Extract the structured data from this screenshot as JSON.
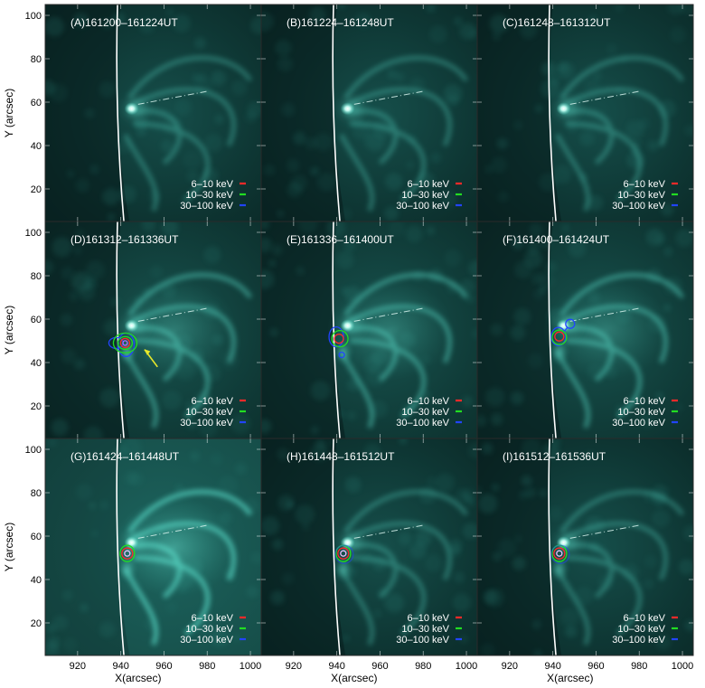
{
  "figure": {
    "axes": {
      "x_label": "X(arcsec)",
      "y_label": "Y (arcsec)",
      "x_ticks": [
        "920",
        "940",
        "960",
        "980",
        "1000"
      ],
      "y_ticks": [
        "20",
        "40",
        "60",
        "80",
        "100"
      ]
    },
    "legend": {
      "entries": [
        {
          "label": "6–10 keV",
          "color": "#ff2a2a"
        },
        {
          "label": "10–30 keV",
          "color": "#22dd22"
        },
        {
          "label": "30–100 keV",
          "color": "#2244ff"
        }
      ]
    },
    "panels": [
      {
        "title": "(A)161200–161224UT",
        "contours": false,
        "arrow": false,
        "brightness": "dim"
      },
      {
        "title": "(B)161224–161248UT",
        "contours": false,
        "arrow": false,
        "brightness": "dim"
      },
      {
        "title": "(C)161248–161312UT",
        "contours": false,
        "arrow": false,
        "brightness": "dim"
      },
      {
        "title": "(D)161312–161336UT",
        "contours": true,
        "arrow": true,
        "brightness": "medium"
      },
      {
        "title": "(E)161336–161400UT",
        "contours": true,
        "arrow": false,
        "brightness": "medium"
      },
      {
        "title": "(F)161400–161424UT",
        "contours": true,
        "arrow": false,
        "brightness": "medium"
      },
      {
        "title": "(G)161424–161448UT",
        "contours": true,
        "arrow": false,
        "brightness": "bright"
      },
      {
        "title": "(H)161448–161512UT",
        "contours": true,
        "arrow": false,
        "brightness": "dim"
      },
      {
        "title": "(I)161512–161536UT",
        "contours": true,
        "arrow": false,
        "brightness": "dim"
      }
    ],
    "colors": {
      "background": "#0c2e2c",
      "emission": "#5fe8d4",
      "limb": "#ffffff",
      "arrow": "#e8e82a"
    }
  }
}
